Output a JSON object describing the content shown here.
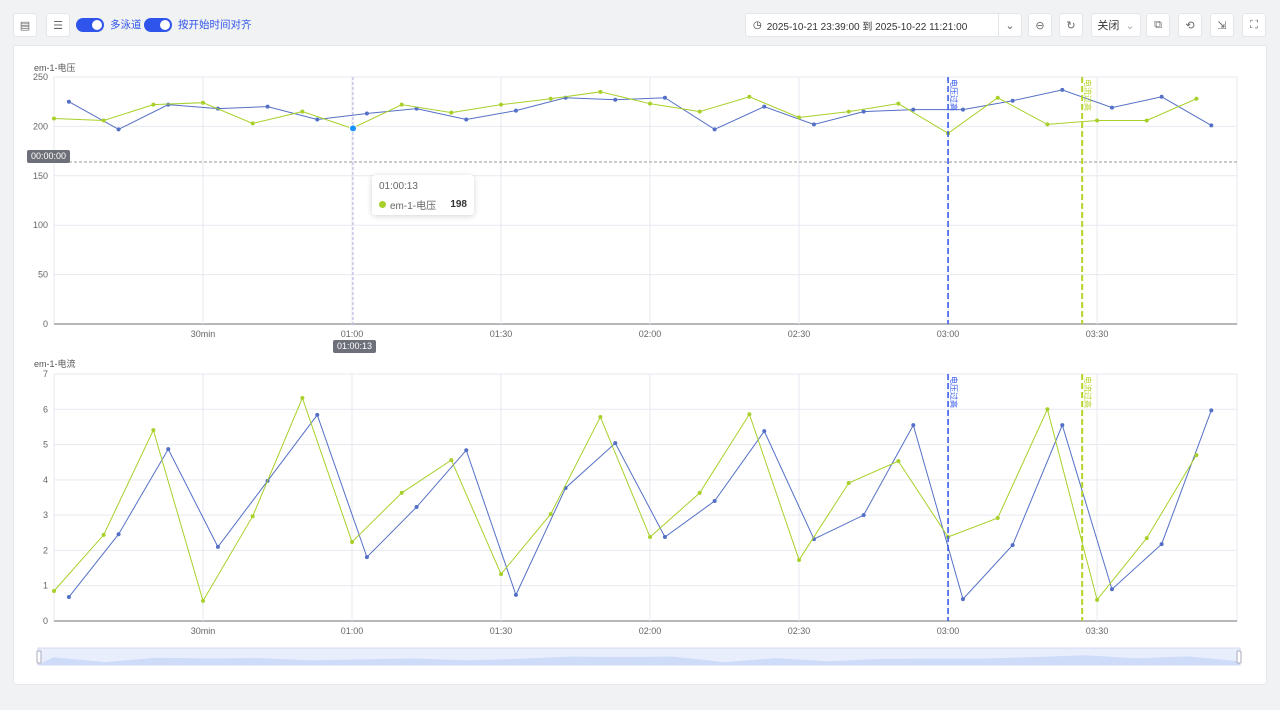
{
  "toolbar": {
    "left_icons": [
      "save-icon",
      "table-icon"
    ],
    "toggle_multilane": {
      "label": "多泳道",
      "on": true
    },
    "toggle_align": {
      "label": "按开始时间对齐",
      "on": true
    },
    "time_range": "2025-10-21 23:39:00 到 2025-10-22 11:21:00",
    "refresh_select": "关闭",
    "right_icons": [
      "zoom-out-icon",
      "refresh-icon",
      "screenshot-icon",
      "history-icon",
      "export-icon",
      "fullscreen-icon"
    ]
  },
  "colors": {
    "blue": "#5470c6",
    "green": "#a8d02a",
    "accent": "#2f54eb",
    "markline_blue": "#2f54eb",
    "markline_green": "#b5d42a"
  },
  "chart_data": [
    {
      "type": "line",
      "title": "em-1-电压",
      "ylim": [
        0,
        250
      ],
      "yticks": [
        0,
        50,
        100,
        150,
        200,
        250
      ],
      "xticks": [
        {
          "m": 30,
          "label": "30min"
        },
        {
          "m": 60,
          "label": "01:00"
        },
        {
          "m": 90,
          "label": "01:30"
        },
        {
          "m": 120,
          "label": "02:00"
        },
        {
          "m": 150,
          "label": "02:30"
        },
        {
          "m": 180,
          "label": "03:00"
        },
        {
          "m": 210,
          "label": "03:30"
        }
      ],
      "series": [
        {
          "color": "#5470c6",
          "x": [
            3,
            13,
            23,
            33,
            43,
            53,
            63,
            73,
            83,
            93,
            103,
            113,
            123,
            133,
            143,
            153,
            163,
            173,
            183,
            193,
            203,
            213,
            223,
            233
          ],
          "values": [
            225,
            197,
            222,
            218,
            220,
            207,
            213,
            218,
            207,
            216,
            229,
            227,
            229,
            197,
            220,
            202,
            215,
            217,
            217,
            226,
            237,
            219,
            230,
            201
          ]
        },
        {
          "color": "#a8d02a",
          "x": [
            0,
            10,
            20,
            30,
            40,
            50,
            60,
            70,
            80,
            90,
            100,
            110,
            120,
            130,
            140,
            150,
            160,
            170,
            180,
            190,
            200,
            210,
            220,
            230
          ],
          "values": [
            208,
            206,
            222,
            224,
            203,
            215,
            198,
            222,
            214,
            222,
            228,
            235,
            223,
            215,
            230,
            209,
            215,
            223,
            193,
            229,
            202,
            206,
            206,
            228
          ]
        }
      ],
      "marklines": [
        {
          "m": 180,
          "label": "电压过高",
          "color": "#2f54eb"
        },
        {
          "m": 207,
          "label": "电流过高",
          "color": "#b5d42a"
        }
      ],
      "hline": {
        "value": 164,
        "label": "00:00:00"
      },
      "pointer": {
        "m": 60.2,
        "label": "01:00:13"
      },
      "tooltip": {
        "time": "01:00:13",
        "series": "em-1-电压",
        "value": "198"
      }
    },
    {
      "type": "line",
      "title": "em-1-电流",
      "ylim": [
        0,
        7
      ],
      "yticks": [
        0,
        1,
        2,
        3,
        4,
        5,
        6,
        7
      ],
      "xticks": [
        {
          "m": 30,
          "label": "30min"
        },
        {
          "m": 60,
          "label": "01:00"
        },
        {
          "m": 90,
          "label": "01:30"
        },
        {
          "m": 120,
          "label": "02:00"
        },
        {
          "m": 150,
          "label": "02:30"
        },
        {
          "m": 180,
          "label": "03:00"
        },
        {
          "m": 210,
          "label": "03:30"
        }
      ],
      "series": [
        {
          "color": "#5470c6",
          "x": [
            3,
            13,
            23,
            33,
            43,
            53,
            63,
            73,
            83,
            93,
            103,
            113,
            123,
            133,
            143,
            153,
            163,
            173,
            183,
            193,
            203,
            213,
            223,
            233
          ],
          "values": [
            0.68,
            2.46,
            4.87,
            2.1,
            3.97,
            5.84,
            1.81,
            3.23,
            4.84,
            0.74,
            3.77,
            5.04,
            2.38,
            3.4,
            5.38,
            2.32,
            3.0,
            5.55,
            0.62,
            2.15,
            5.55,
            0.9,
            2.18,
            5.97
          ]
        },
        {
          "color": "#a8d02a",
          "x": [
            0,
            10,
            20,
            30,
            40,
            50,
            60,
            70,
            80,
            90,
            100,
            110,
            120,
            130,
            140,
            150,
            160,
            170,
            180,
            190,
            200,
            210,
            220,
            230
          ],
          "values": [
            0.85,
            2.44,
            5.41,
            0.57,
            2.97,
            6.32,
            2.24,
            3.63,
            4.56,
            1.33,
            3.03,
            5.78,
            2.38,
            3.63,
            5.86,
            1.73,
            3.91,
            4.53,
            2.38,
            2.92,
            6.0,
            0.6,
            2.35,
            4.7
          ]
        }
      ],
      "marklines": [
        {
          "m": 180,
          "label": "电压过高",
          "color": "#2f54eb"
        },
        {
          "m": 207,
          "label": "电流过高",
          "color": "#b5d42a"
        }
      ]
    }
  ]
}
